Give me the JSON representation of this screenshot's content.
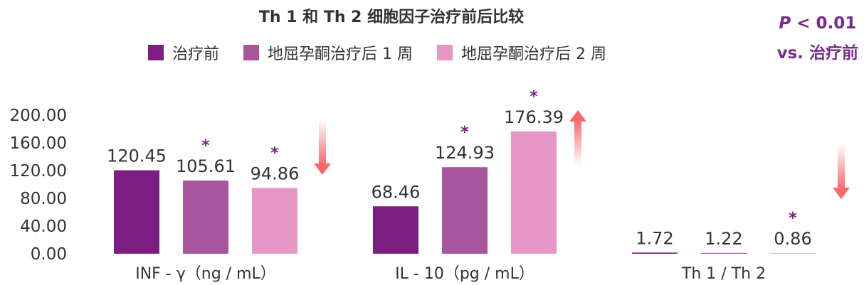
{
  "chart_data": {
    "type": "bar",
    "title": "Th 1 和 Th 2 细胞因子治疗前后比较",
    "categories": [
      "INF - γ（ng / mL）",
      "IL - 10（pg / mL）",
      "Th 1 / Th 2"
    ],
    "series": [
      {
        "name": "治疗前",
        "color": "#7b1d81",
        "values": [
          120.45,
          68.46,
          1.72
        ],
        "labels": [
          "120.45",
          "68.46",
          "1.72"
        ]
      },
      {
        "name": "地屈孕酮治疗后 1 周",
        "color": "#a7559e",
        "values": [
          105.61,
          124.93,
          1.22
        ],
        "labels": [
          "105.61",
          "124.93",
          "1.22"
        ]
      },
      {
        "name": "地屈孕酮治疗后 2 周",
        "color": "#e797c6",
        "values": [
          94.86,
          176.39,
          0.86
        ],
        "labels": [
          "94.86",
          "176.39",
          "0.86"
        ]
      }
    ],
    "significant": [
      [
        false,
        false,
        false
      ],
      [
        true,
        true,
        false
      ],
      [
        true,
        true,
        true
      ]
    ],
    "significance_marker": "*",
    "trend_arrows": [
      "down",
      "up",
      "down"
    ],
    "ylim": [
      0,
      200
    ],
    "yticks": [
      "0.00",
      "40.00",
      "80.00",
      "120.00",
      "160.00",
      "200.00"
    ],
    "grid": false,
    "legend_position": "top"
  },
  "note": {
    "p_label": "P",
    "p_text": "< 0.01",
    "vs_text": "vs. 治疗前"
  }
}
